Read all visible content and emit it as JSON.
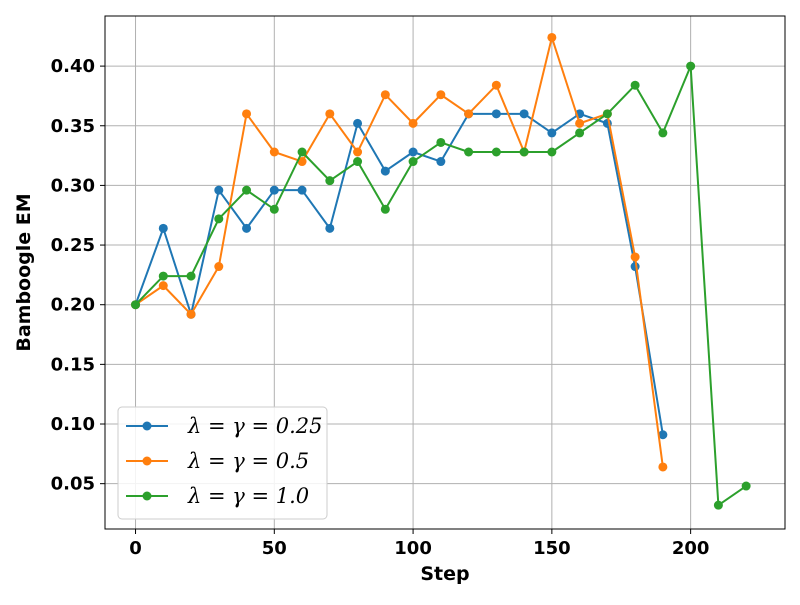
{
  "chart_data": {
    "type": "line",
    "title": "",
    "xlabel": "Step",
    "ylabel": "Bamboogle EM",
    "xlim": [
      -11,
      234
    ],
    "ylim": [
      0.012,
      0.442
    ],
    "xticks": [
      0,
      50,
      100,
      150,
      200
    ],
    "xtick_labels": [
      "0",
      "50",
      "100",
      "150",
      "200"
    ],
    "yticks": [
      0.05,
      0.1,
      0.15,
      0.2,
      0.25,
      0.3,
      0.35,
      0.4
    ],
    "ytick_labels": [
      "0.05",
      "0.10",
      "0.15",
      "0.20",
      "0.25",
      "0.30",
      "0.35",
      "0.40"
    ],
    "grid": true,
    "legend_position": "lower-left",
    "series": [
      {
        "name": "λ = γ = 0.25",
        "color": "#1f77b4",
        "x": [
          0,
          10,
          20,
          30,
          40,
          50,
          60,
          70,
          80,
          90,
          100,
          110,
          120,
          130,
          140,
          150,
          160,
          170,
          180,
          190
        ],
        "y": [
          0.2,
          0.264,
          0.192,
          0.296,
          0.264,
          0.296,
          0.296,
          0.264,
          0.352,
          0.312,
          0.328,
          0.32,
          0.36,
          0.36,
          0.36,
          0.344,
          0.36,
          0.352,
          0.232,
          0.091
        ]
      },
      {
        "name": "λ = γ = 0.5",
        "color": "#ff7f0e",
        "x": [
          0,
          10,
          20,
          30,
          40,
          50,
          60,
          70,
          80,
          90,
          100,
          110,
          120,
          130,
          140,
          150,
          160,
          170,
          180,
          190
        ],
        "y": [
          0.2,
          0.216,
          0.192,
          0.232,
          0.36,
          0.328,
          0.32,
          0.36,
          0.328,
          0.376,
          0.352,
          0.376,
          0.36,
          0.384,
          0.328,
          0.424,
          0.352,
          0.36,
          0.24,
          0.064
        ]
      },
      {
        "name": "λ = γ = 1.0",
        "color": "#2ca02c",
        "x": [
          0,
          10,
          20,
          30,
          40,
          50,
          60,
          70,
          80,
          90,
          100,
          110,
          120,
          130,
          140,
          150,
          160,
          170,
          180,
          190,
          200,
          210,
          220
        ],
        "y": [
          0.2,
          0.224,
          0.224,
          0.272,
          0.296,
          0.28,
          0.328,
          0.304,
          0.32,
          0.28,
          0.32,
          0.336,
          0.328,
          0.328,
          0.328,
          0.328,
          0.344,
          0.36,
          0.384,
          0.344,
          0.4,
          0.032,
          0.048
        ]
      }
    ]
  }
}
